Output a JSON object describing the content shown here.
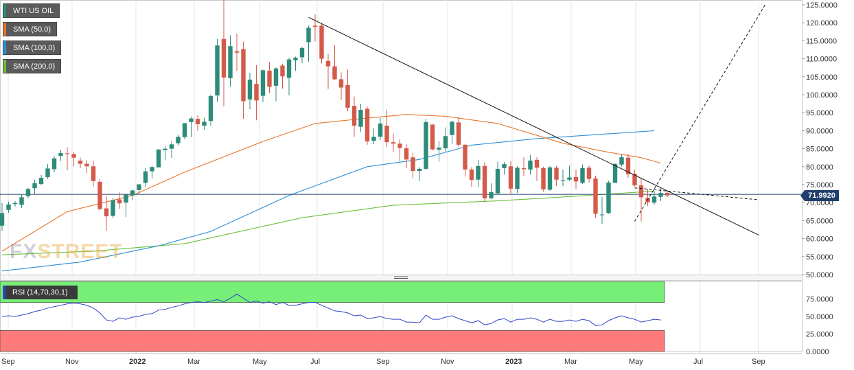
{
  "legend": [
    {
      "label": "WTI US OIL",
      "color": "#2e8b7a"
    },
    {
      "label": "SMA (50,0)",
      "color": "#e8762d"
    },
    {
      "label": "SMA (100,0)",
      "color": "#2b8fd9"
    },
    {
      "label": "SMA (200,0)",
      "color": "#6bbf3a"
    }
  ],
  "rsi_label": "RSI (14,70,30,1)",
  "logo": {
    "fx": "FX",
    "street": "STREET"
  },
  "last_price": "71.9920",
  "colors": {
    "up": "#2e8b7a",
    "down": "#d45a4a",
    "sma50": "#e8762d",
    "sma100": "#2b8fd9",
    "sma200": "#6bbf3a",
    "rsi": "#2b44c8",
    "overbought": "#77ee77",
    "oversold": "#ff7b7b"
  },
  "chart_data": {
    "type": "candlestick",
    "x_ticks": [
      "Sep",
      "Nov",
      "2022",
      "Mar",
      "May",
      "Jul",
      "Sep",
      "Nov",
      "2023",
      "Mar",
      "May",
      "Jul",
      "Sep"
    ],
    "y_ticks": [
      "125.0000",
      "120.0000",
      "115.0000",
      "110.0000",
      "105.0000",
      "100.0000",
      "95.0000",
      "90.0000",
      "85.0000",
      "80.0000",
      "75.0000",
      "70.0000",
      "65.0000",
      "60.0000",
      "55.0000",
      "50.0000"
    ],
    "ylim": [
      50,
      125
    ],
    "candles": [
      [
        63.6,
        67.1,
        62.2,
        69.9
      ],
      [
        68.0,
        69.5,
        67.2,
        70.3
      ],
      [
        69.6,
        69.9,
        68.9,
        70.4
      ],
      [
        69.4,
        71.5,
        68.5,
        72.4
      ],
      [
        71.8,
        73.8,
        71.2,
        74.1
      ],
      [
        74.0,
        75.4,
        72.5,
        76.4
      ],
      [
        75.2,
        76.9,
        74.8,
        77.7
      ],
      [
        77.1,
        79.5,
        76.6,
        80.7
      ],
      [
        79.3,
        82.3,
        78.5,
        82.9
      ],
      [
        83.0,
        83.8,
        81.6,
        84.7
      ],
      [
        83.7,
        83.5,
        79.0,
        85.4
      ],
      [
        83.5,
        82.5,
        80.1,
        84.0
      ],
      [
        81.7,
        80.8,
        79.6,
        82.5
      ],
      [
        80.8,
        80.1,
        78.2,
        81.8
      ],
      [
        80.1,
        76.0,
        74.5,
        81.6
      ],
      [
        75.8,
        68.2,
        67.8,
        76.5
      ],
      [
        68.4,
        66.2,
        62.2,
        71.7
      ],
      [
        66.3,
        70.7,
        65.7,
        71.3
      ],
      [
        70.9,
        69.8,
        68.3,
        72.8
      ],
      [
        70.0,
        72.2,
        66.0,
        72.5
      ],
      [
        72.0,
        73.4,
        70.7,
        73.6
      ],
      [
        73.5,
        75.1,
        72.2,
        75.1
      ],
      [
        75.5,
        78.7,
        74.3,
        79.6
      ],
      [
        78.7,
        79.9,
        76.7,
        80.2
      ],
      [
        79.8,
        84.8,
        79.8,
        84.5
      ],
      [
        84.6,
        85.0,
        81.8,
        85.7
      ],
      [
        85.0,
        86.2,
        82.4,
        87.0
      ],
      [
        86.5,
        88.3,
        85.9,
        88.9
      ],
      [
        88.2,
        92.1,
        87.6,
        92.0
      ],
      [
        92.4,
        93.4,
        88.2,
        94.0
      ],
      [
        93.3,
        91.8,
        89.9,
        94.3
      ],
      [
        91.4,
        92.5,
        90.3,
        93.6
      ],
      [
        92.7,
        99.6,
        91.4,
        100.1
      ],
      [
        99.8,
        113.7,
        98.0,
        115.5
      ],
      [
        115.5,
        104.8,
        96.8,
        130.5
      ],
      [
        104.6,
        113.5,
        102.2,
        116.5
      ],
      [
        112.1,
        111.7,
        106.6,
        117.0
      ],
      [
        112.7,
        98.2,
        93.3,
        114.8
      ],
      [
        98.7,
        104.2,
        96.0,
        106.1
      ],
      [
        103.0,
        98.4,
        92.9,
        108.2
      ],
      [
        99.7,
        106.8,
        97.9,
        107.0
      ],
      [
        106.7,
        102.2,
        100.5,
        109.1
      ],
      [
        102.5,
        107.3,
        98.2,
        107.6
      ],
      [
        108.1,
        105.1,
        101.7,
        108.6
      ],
      [
        104.7,
        109.8,
        99.8,
        110.3
      ],
      [
        109.6,
        110.3,
        106.7,
        110.6
      ],
      [
        110.4,
        113.0,
        108.8,
        113.3
      ],
      [
        114.6,
        118.6,
        109.2,
        119.2
      ],
      [
        119.2,
        118.9,
        114.8,
        122.4
      ],
      [
        119.2,
        110.0,
        108.7,
        119.9
      ],
      [
        109.4,
        107.9,
        101.6,
        111.3
      ],
      [
        107.9,
        104.3,
        104.0,
        113.8
      ],
      [
        104.3,
        102.0,
        98.5,
        106.2
      ],
      [
        102.7,
        96.4,
        95.4,
        107.0
      ],
      [
        96.9,
        91.4,
        88.3,
        99.5
      ],
      [
        91.1,
        95.8,
        89.6,
        97.5
      ],
      [
        96.1,
        87.0,
        86.1,
        96.7
      ],
      [
        87.2,
        88.3,
        86.3,
        90.6
      ],
      [
        88.3,
        92.0,
        87.4,
        93.6
      ],
      [
        91.4,
        86.8,
        85.5,
        95.8
      ],
      [
        86.8,
        86.4,
        84.0,
        89.2
      ],
      [
        86.4,
        85.2,
        81.5,
        87.6
      ],
      [
        85.1,
        82.0,
        79.6,
        86.2
      ],
      [
        82.6,
        78.8,
        76.8,
        83.9
      ],
      [
        78.8,
        79.4,
        76.0,
        79.9
      ],
      [
        79.4,
        92.4,
        79.2,
        93.3
      ],
      [
        91.7,
        84.8,
        84.5,
        91.9
      ],
      [
        84.7,
        85.3,
        81.4,
        87.2
      ],
      [
        85.1,
        88.5,
        84.2,
        90.9
      ],
      [
        88.8,
        92.5,
        86.3,
        92.8
      ],
      [
        92.3,
        86.1,
        85.5,
        93.7
      ],
      [
        86.1,
        79.2,
        77.2,
        86.4
      ],
      [
        79.2,
        76.3,
        74.4,
        79.9
      ],
      [
        76.4,
        80.2,
        74.3,
        81.9
      ],
      [
        80.2,
        71.2,
        70.1,
        81.2
      ],
      [
        71.2,
        72.9,
        71.0,
        75.4
      ],
      [
        72.6,
        79.4,
        72.4,
        81.4
      ],
      [
        79.6,
        80.7,
        77.8,
        81.3
      ],
      [
        80.1,
        73.9,
        72.5,
        81.5
      ],
      [
        73.8,
        79.7,
        72.7,
        80.1
      ],
      [
        79.6,
        79.3,
        77.4,
        82.6
      ],
      [
        79.2,
        81.7,
        77.8,
        83.2
      ],
      [
        81.9,
        79.7,
        76.0,
        82.6
      ],
      [
        79.6,
        73.7,
        73.1,
        80.0
      ],
      [
        73.6,
        79.8,
        73.3,
        80.2
      ],
      [
        79.7,
        76.4,
        74.7,
        80.2
      ],
      [
        76.3,
        76.3,
        74.6,
        79.2
      ],
      [
        76.4,
        77.0,
        76.0,
        80.3
      ],
      [
        77.1,
        75.9,
        73.8,
        79.2
      ],
      [
        75.5,
        79.6,
        75.2,
        80.6
      ],
      [
        79.7,
        76.6,
        75.6,
        80.3
      ],
      [
        76.7,
        66.9,
        65.8,
        77.5
      ],
      [
        66.7,
        66.7,
        64.1,
        71.6
      ],
      [
        67.1,
        75.6,
        66.9,
        76.1
      ],
      [
        75.5,
        80.7,
        75.5,
        81.1
      ],
      [
        80.6,
        82.6,
        80.0,
        83.5
      ],
      [
        82.5,
        77.9,
        76.9,
        83.5
      ],
      [
        78.0,
        74.8,
        74.5,
        79.1
      ],
      [
        74.8,
        71.5,
        64.8,
        76.8
      ],
      [
        71.3,
        70.1,
        69.1,
        73.8
      ],
      [
        70.0,
        71.7,
        69.4,
        73.2
      ],
      [
        71.6,
        72.7,
        70.4,
        74.1
      ],
      [
        72.7,
        72.0,
        71.5,
        73.4
      ]
    ],
    "sma50": [
      [
        0,
        56.5
      ],
      [
        10,
        67.5
      ],
      [
        20,
        72
      ],
      [
        28,
        78.5
      ],
      [
        40,
        87
      ],
      [
        48,
        92
      ],
      [
        56,
        93.5
      ],
      [
        62,
        94.5
      ],
      [
        68,
        94
      ],
      [
        76,
        92
      ],
      [
        86,
        86.5
      ],
      [
        93,
        84
      ],
      [
        98,
        82.5
      ],
      [
        101,
        81
      ]
    ],
    "sma100": [
      [
        0,
        51
      ],
      [
        12,
        53.5
      ],
      [
        24,
        58
      ],
      [
        32,
        62
      ],
      [
        44,
        72
      ],
      [
        56,
        80
      ],
      [
        64,
        82
      ],
      [
        72,
        86
      ],
      [
        82,
        87.8
      ],
      [
        92,
        89
      ],
      [
        100,
        90
      ]
    ],
    "sma200": [
      [
        0,
        55.5
      ],
      [
        14,
        56.5
      ],
      [
        28,
        58.6
      ],
      [
        46,
        65.8
      ],
      [
        60,
        69.3
      ],
      [
        76,
        70.5
      ],
      [
        88,
        71.8
      ],
      [
        100,
        73.2
      ]
    ],
    "trendline_down": {
      "from": [
        47,
        121.5
      ],
      "to": [
        116,
        61
      ]
    },
    "trendline_up_dashed": {
      "from": [
        97,
        64.8
      ],
      "to": [
        117,
        125
      ]
    },
    "trendline_horizontal_dashed": {
      "from": [
        97,
        74.1
      ],
      "to": [
        116,
        70.8
      ]
    },
    "last_price_line": 72.3,
    "rsi": {
      "y_ticks": [
        "75.0000",
        "50.0000",
        "25.0000",
        "0.0000"
      ],
      "ylim": [
        0,
        100
      ],
      "overbought": 70,
      "oversold": 30,
      "values": [
        50,
        51,
        50,
        52,
        54,
        57,
        59,
        62,
        64,
        66,
        68,
        69,
        68,
        66,
        62,
        55,
        45,
        43,
        48,
        46,
        49,
        50,
        53,
        54,
        59,
        60,
        63,
        65,
        68,
        70,
        71,
        70,
        72,
        74,
        71,
        76,
        82,
        76,
        70,
        72,
        69,
        71,
        67,
        70,
        66,
        66,
        68,
        70,
        70,
        66,
        62,
        58,
        57,
        55,
        51,
        52,
        47,
        48,
        50,
        47,
        46,
        46,
        42,
        42,
        41,
        52,
        46,
        46,
        49,
        51,
        47,
        44,
        41,
        44,
        38,
        40,
        45,
        47,
        42,
        46,
        46,
        48,
        46,
        42,
        46,
        43,
        43,
        45,
        43,
        46,
        44,
        37,
        38,
        44,
        48,
        51,
        48,
        46,
        42,
        44,
        46,
        45
      ]
    }
  }
}
